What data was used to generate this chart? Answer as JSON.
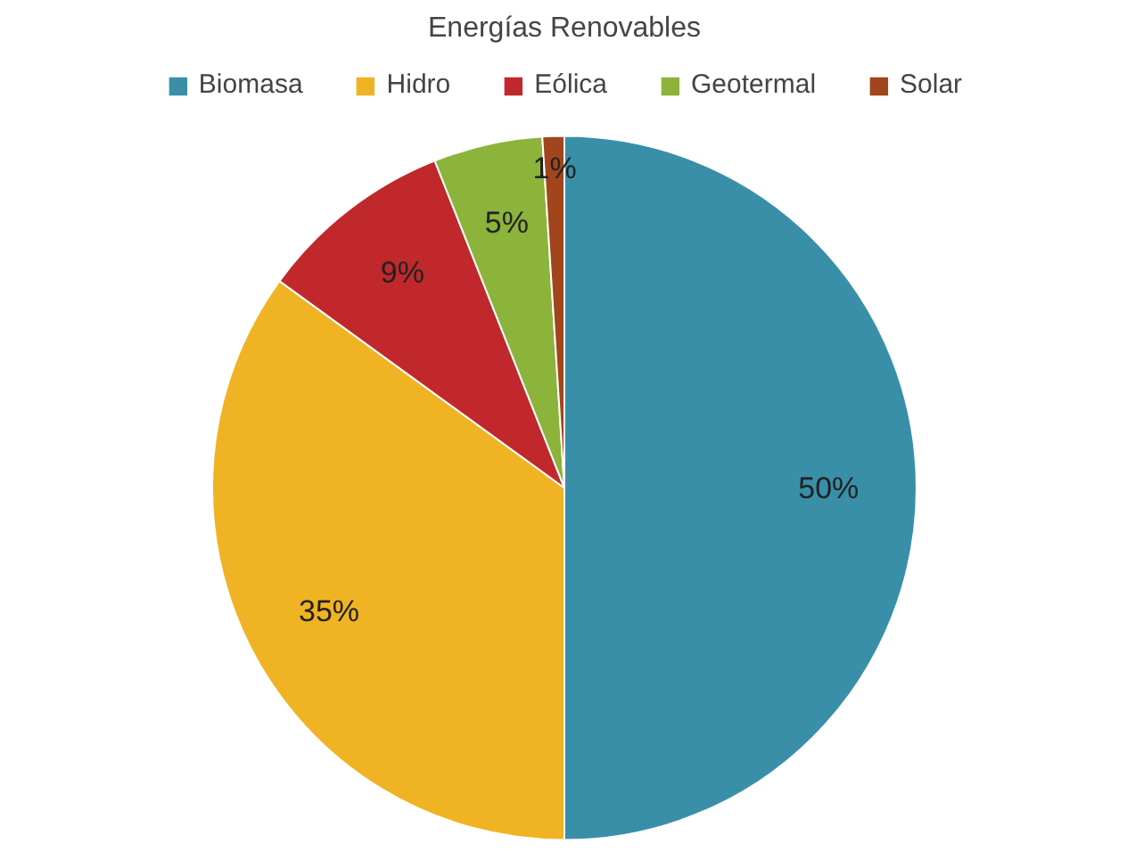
{
  "chart_data": {
    "type": "pie",
    "title": "Energías Renovables",
    "categories": [
      "Biomasa",
      "Hidro",
      "Eólica",
      "Geotermal",
      "Solar"
    ],
    "values": [
      50,
      35,
      9,
      5,
      1
    ],
    "colors": [
      "#3a8fa8",
      "#f0b323",
      "#c0282c",
      "#8cb33a",
      "#a0451c"
    ],
    "value_labels": [
      "50%",
      "35%",
      "9%",
      "5%",
      "1%"
    ],
    "legend": "top"
  }
}
